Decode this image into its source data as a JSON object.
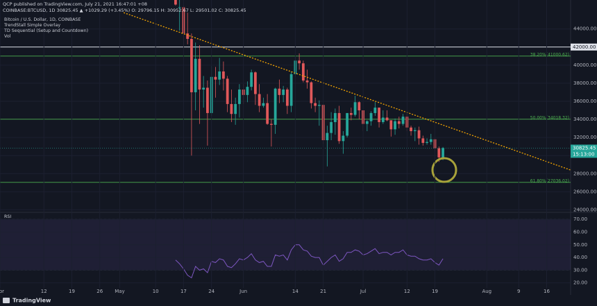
{
  "header": {
    "publisher": "QCP published on TradingView.com, July 21, 2021 16:47:01 +08",
    "symbol_line": "COINBASE:BTCUSD, 1D 30825.45 ▲ +1029.29 (+3.45%) O: 29796.15 H: 30952.67 L: 29501.02 C: 30825.45"
  },
  "chart_data": [
    {
      "type": "candlestick",
      "title": "Bitcoin / U.S. Dollar, 1D, COINBASE",
      "indicators": [
        "TrendStall Simple Overlay",
        "TD Sequential (Setup and Countdown)",
        "Vol"
      ],
      "up_color": "#26a69a",
      "down_color": "#e0585a",
      "x": [
        "2021-05-15",
        "2021-05-16",
        "2021-05-17",
        "2021-05-18",
        "2021-05-19",
        "2021-05-20",
        "2021-05-21",
        "2021-05-22",
        "2021-05-23",
        "2021-05-24",
        "2021-05-25",
        "2021-05-26",
        "2021-05-27",
        "2021-05-28",
        "2021-05-29",
        "2021-05-30",
        "2021-05-31",
        "2021-06-01",
        "2021-06-02",
        "2021-06-03",
        "2021-06-04",
        "2021-06-05",
        "2021-06-06",
        "2021-06-07",
        "2021-06-08",
        "2021-06-09",
        "2021-06-10",
        "2021-06-11",
        "2021-06-12",
        "2021-06-13",
        "2021-06-14",
        "2021-06-15",
        "2021-06-16",
        "2021-06-17",
        "2021-06-18",
        "2021-06-19",
        "2021-06-20",
        "2021-06-21",
        "2021-06-22",
        "2021-06-23",
        "2021-06-24",
        "2021-06-25",
        "2021-06-26",
        "2021-06-27",
        "2021-06-28",
        "2021-06-29",
        "2021-06-30",
        "2021-07-01",
        "2021-07-02",
        "2021-07-03",
        "2021-07-04",
        "2021-07-05",
        "2021-07-06",
        "2021-07-07",
        "2021-07-08",
        "2021-07-09",
        "2021-07-10",
        "2021-07-11",
        "2021-07-12",
        "2021-07-13",
        "2021-07-14",
        "2021-07-15",
        "2021-07-16",
        "2021-07-17",
        "2021-07-18",
        "2021-07-19",
        "2021-07-20",
        "2021-07-21"
      ],
      "ohlc": [
        [
          49800,
          50700,
          46600,
          46700
        ],
        [
          46400,
          49800,
          43800,
          46400
        ],
        [
          46400,
          46600,
          42100,
          43500
        ],
        [
          43500,
          45800,
          42300,
          42900
        ],
        [
          42900,
          43500,
          30000,
          37000
        ],
        [
          37000,
          42500,
          35000,
          40700
        ],
        [
          40700,
          42200,
          33500,
          37300
        ],
        [
          37300,
          38800,
          35300,
          37500
        ],
        [
          37500,
          38300,
          31100,
          34700
        ],
        [
          34700,
          39900,
          34400,
          38700
        ],
        [
          38700,
          39800,
          36400,
          38400
        ],
        [
          38400,
          40800,
          37800,
          39300
        ],
        [
          39300,
          40400,
          37200,
          38500
        ],
        [
          38500,
          38800,
          34800,
          35700
        ],
        [
          35700,
          37300,
          33700,
          34600
        ],
        [
          34600,
          36400,
          33400,
          35700
        ],
        [
          35700,
          37900,
          34200,
          37300
        ],
        [
          37300,
          37900,
          35700,
          36700
        ],
        [
          36700,
          38200,
          35900,
          37600
        ],
        [
          37600,
          39500,
          37200,
          39200
        ],
        [
          39200,
          39300,
          35600,
          36800
        ],
        [
          36800,
          37900,
          34800,
          35500
        ],
        [
          35500,
          36400,
          35300,
          35800
        ],
        [
          35800,
          36800,
          33400,
          33500
        ],
        [
          33500,
          34000,
          31000,
          33400
        ],
        [
          33400,
          37500,
          32400,
          37400
        ],
        [
          37400,
          38400,
          35800,
          36700
        ],
        [
          36700,
          37700,
          35900,
          37300
        ],
        [
          37300,
          37500,
          34600,
          35500
        ],
        [
          35500,
          39300,
          34800,
          39000
        ],
        [
          39000,
          41000,
          38700,
          40500
        ],
        [
          40500,
          41300,
          39500,
          40200
        ],
        [
          40200,
          40500,
          38100,
          38300
        ],
        [
          38300,
          39500,
          37400,
          38100
        ],
        [
          38100,
          38200,
          35200,
          35800
        ],
        [
          35800,
          36400,
          34800,
          35500
        ],
        [
          35500,
          36100,
          33300,
          35600
        ],
        [
          35600,
          35700,
          31300,
          31700
        ],
        [
          31700,
          33300,
          28800,
          32500
        ],
        [
          32500,
          34800,
          31700,
          33700
        ],
        [
          33700,
          35200,
          32300,
          34700
        ],
        [
          34700,
          35500,
          31300,
          31600
        ],
        [
          31600,
          32700,
          30200,
          32200
        ],
        [
          32200,
          34700,
          32000,
          34700
        ],
        [
          34700,
          35300,
          33900,
          34500
        ],
        [
          34500,
          36600,
          34300,
          35900
        ],
        [
          35900,
          36000,
          34000,
          35000
        ],
        [
          35000,
          35000,
          32700,
          33500
        ],
        [
          33500,
          33900,
          32700,
          33800
        ],
        [
          33800,
          34900,
          33300,
          34700
        ],
        [
          34700,
          35900,
          34400,
          35300
        ],
        [
          35300,
          35300,
          33100,
          33700
        ],
        [
          33700,
          35000,
          33500,
          34200
        ],
        [
          34200,
          35000,
          33800,
          33900
        ],
        [
          33900,
          33900,
          32100,
          32900
        ],
        [
          32900,
          34100,
          32300,
          33800
        ],
        [
          33800,
          34300,
          33000,
          33500
        ],
        [
          33500,
          34600,
          33300,
          34300
        ],
        [
          34300,
          34600,
          32700,
          33100
        ],
        [
          33100,
          33300,
          32200,
          32700
        ],
        [
          32700,
          33100,
          31600,
          32800
        ],
        [
          32800,
          33200,
          31200,
          31900
        ],
        [
          31900,
          32200,
          31100,
          31400
        ],
        [
          31400,
          31900,
          31200,
          31500
        ],
        [
          31500,
          32400,
          31200,
          31800
        ],
        [
          31800,
          31900,
          30500,
          30800
        ],
        [
          30800,
          31000,
          29300,
          29800
        ],
        [
          29796.15,
          30952.67,
          29501.02,
          30825.45
        ]
      ],
      "xlim": [
        "2021-04-01",
        "2021-08-22"
      ],
      "xticks": [
        {
          "value": "2021-04-01",
          "label": "Apr"
        },
        {
          "value": "2021-04-12",
          "label": "12"
        },
        {
          "value": "2021-04-19",
          "label": "19"
        },
        {
          "value": "2021-04-26",
          "label": "26"
        },
        {
          "value": "2021-05-01",
          "label": "May"
        },
        {
          "value": "2021-05-10",
          "label": "10"
        },
        {
          "value": "2021-05-17",
          "label": "17"
        },
        {
          "value": "2021-05-24",
          "label": "24"
        },
        {
          "value": "2021-06-01",
          "label": "Jun"
        },
        {
          "value": "2021-06-14",
          "label": "14"
        },
        {
          "value": "2021-06-21",
          "label": "21"
        },
        {
          "value": "2021-07-01",
          "label": "Jul"
        },
        {
          "value": "2021-07-12",
          "label": "12"
        },
        {
          "value": "2021-07-19",
          "label": "19"
        },
        {
          "value": "2021-08-01",
          "label": "Aug"
        },
        {
          "value": "2021-08-09",
          "label": "9"
        },
        {
          "value": "2021-08-16",
          "label": "16"
        }
      ],
      "ylim": [
        23800,
        47200
      ],
      "yticks": [
        {
          "value": 24000,
          "label": "24000.00"
        },
        {
          "value": 26000,
          "label": "26000.00"
        },
        {
          "value": 28000,
          "label": "28000.00"
        },
        {
          "value": 30000,
          "label": "30000.00"
        },
        {
          "value": 32000,
          "label": "32000.00"
        },
        {
          "value": 34000,
          "label": "34000.00"
        },
        {
          "value": 36000,
          "label": "36000.00"
        },
        {
          "value": 38000,
          "label": "38000.00"
        },
        {
          "value": 40000,
          "label": "40000.00"
        },
        {
          "value": 44000,
          "label": "44000.00"
        }
      ],
      "fib_levels": [
        {
          "value": 41000.62,
          "label": "38.20%(41000.62)"
        },
        {
          "value": 34018.32,
          "label": "50.00%(34018.32)"
        },
        {
          "value": 27036.02,
          "label": "61.80%(27036.02)"
        }
      ],
      "fib_color": "#4caf50",
      "horizontal_line": {
        "value": 42000,
        "label": "42000.00",
        "color": "#e0e3eb"
      },
      "last_price": {
        "value": 30825.45,
        "label": "30825.45",
        "countdown": "15:13:00"
      },
      "trendline": {
        "x": [
          "2021-05-02",
          "2021-08-22"
        ],
        "y": [
          45800,
          28400
        ],
        "color": "#f7a600"
      }
    },
    {
      "type": "line",
      "title": "RSI",
      "color": "#7e57c2",
      "x": [
        "2021-05-15",
        "2021-05-16",
        "2021-05-17",
        "2021-05-18",
        "2021-05-19",
        "2021-05-20",
        "2021-05-21",
        "2021-05-22",
        "2021-05-23",
        "2021-05-24",
        "2021-05-25",
        "2021-05-26",
        "2021-05-27",
        "2021-05-28",
        "2021-05-29",
        "2021-05-30",
        "2021-05-31",
        "2021-06-01",
        "2021-06-02",
        "2021-06-03",
        "2021-06-04",
        "2021-06-05",
        "2021-06-06",
        "2021-06-07",
        "2021-06-08",
        "2021-06-09",
        "2021-06-10",
        "2021-06-11",
        "2021-06-12",
        "2021-06-13",
        "2021-06-14",
        "2021-06-15",
        "2021-06-16",
        "2021-06-17",
        "2021-06-18",
        "2021-06-19",
        "2021-06-20",
        "2021-06-21",
        "2021-06-22",
        "2021-06-23",
        "2021-06-24",
        "2021-06-25",
        "2021-06-26",
        "2021-06-27",
        "2021-06-28",
        "2021-06-29",
        "2021-06-30",
        "2021-07-01",
        "2021-07-02",
        "2021-07-03",
        "2021-07-04",
        "2021-07-05",
        "2021-07-06",
        "2021-07-07",
        "2021-07-08",
        "2021-07-09",
        "2021-07-10",
        "2021-07-11",
        "2021-07-12",
        "2021-07-13",
        "2021-07-14",
        "2021-07-15",
        "2021-07-16",
        "2021-07-17",
        "2021-07-18",
        "2021-07-19",
        "2021-07-20",
        "2021-07-21"
      ],
      "values": [
        38,
        35,
        31,
        26,
        24,
        33,
        30,
        31,
        28,
        37,
        36,
        39,
        38,
        33,
        32,
        35,
        39,
        38,
        40,
        43,
        38,
        36,
        37,
        33,
        33,
        42,
        41,
        42,
        38,
        46,
        50,
        50,
        46,
        45,
        41,
        40,
        40,
        34,
        37,
        40,
        42,
        37,
        39,
        44,
        44,
        46,
        45,
        42,
        43,
        45,
        47,
        43,
        44,
        44,
        42,
        44,
        44,
        46,
        42,
        41,
        41,
        39,
        38,
        38,
        39,
        36,
        34,
        39
      ],
      "ylim": [
        16,
        75
      ],
      "yticks": [
        {
          "value": 20,
          "label": "20.00"
        },
        {
          "value": 30,
          "label": "30.00"
        },
        {
          "value": 40,
          "label": "40.00"
        },
        {
          "value": 50,
          "label": "50.00"
        },
        {
          "value": 60,
          "label": "60.00"
        },
        {
          "value": 70,
          "label": "70.00"
        }
      ],
      "band": [
        30,
        70
      ]
    }
  ],
  "footer": "TradingView"
}
